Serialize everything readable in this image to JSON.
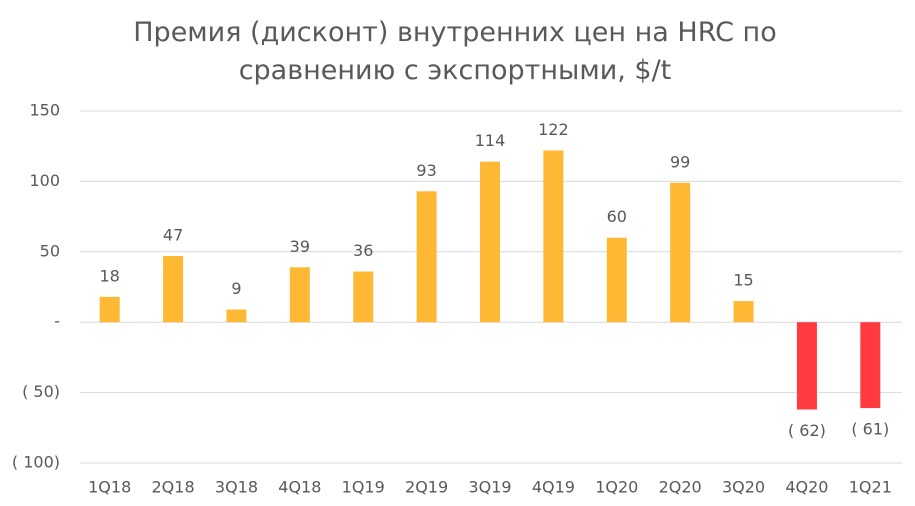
{
  "chart_data": {
    "type": "bar",
    "title": "Премия (дисконт) внутренних цен на HRC по сравнению с экспортными,  $/t",
    "categories": [
      "1Q18",
      "2Q18",
      "3Q18",
      "4Q18",
      "1Q19",
      "2Q19",
      "3Q19",
      "4Q19",
      "1Q20",
      "2Q20",
      "3Q20",
      "4Q20",
      "1Q21"
    ],
    "values": [
      18,
      47,
      9,
      39,
      36,
      93,
      114,
      122,
      60,
      99,
      15,
      -62,
      -61
    ],
    "value_labels": [
      "18",
      "47",
      "9",
      "39",
      "36",
      "93",
      "114",
      "122",
      "60",
      "99",
      "15",
      "( 62)",
      "( 61)"
    ],
    "color": "#FFB834",
    "negative_color": "#FF3B3F",
    "ylim": [
      -100,
      150
    ],
    "yticks": [
      150,
      100,
      50,
      {
        "value": 0,
        "label": "-"
      },
      {
        "value": -50,
        "label": "( 50)"
      },
      {
        "value": -100,
        "label": "( 100)"
      }
    ],
    "grid": true
  }
}
